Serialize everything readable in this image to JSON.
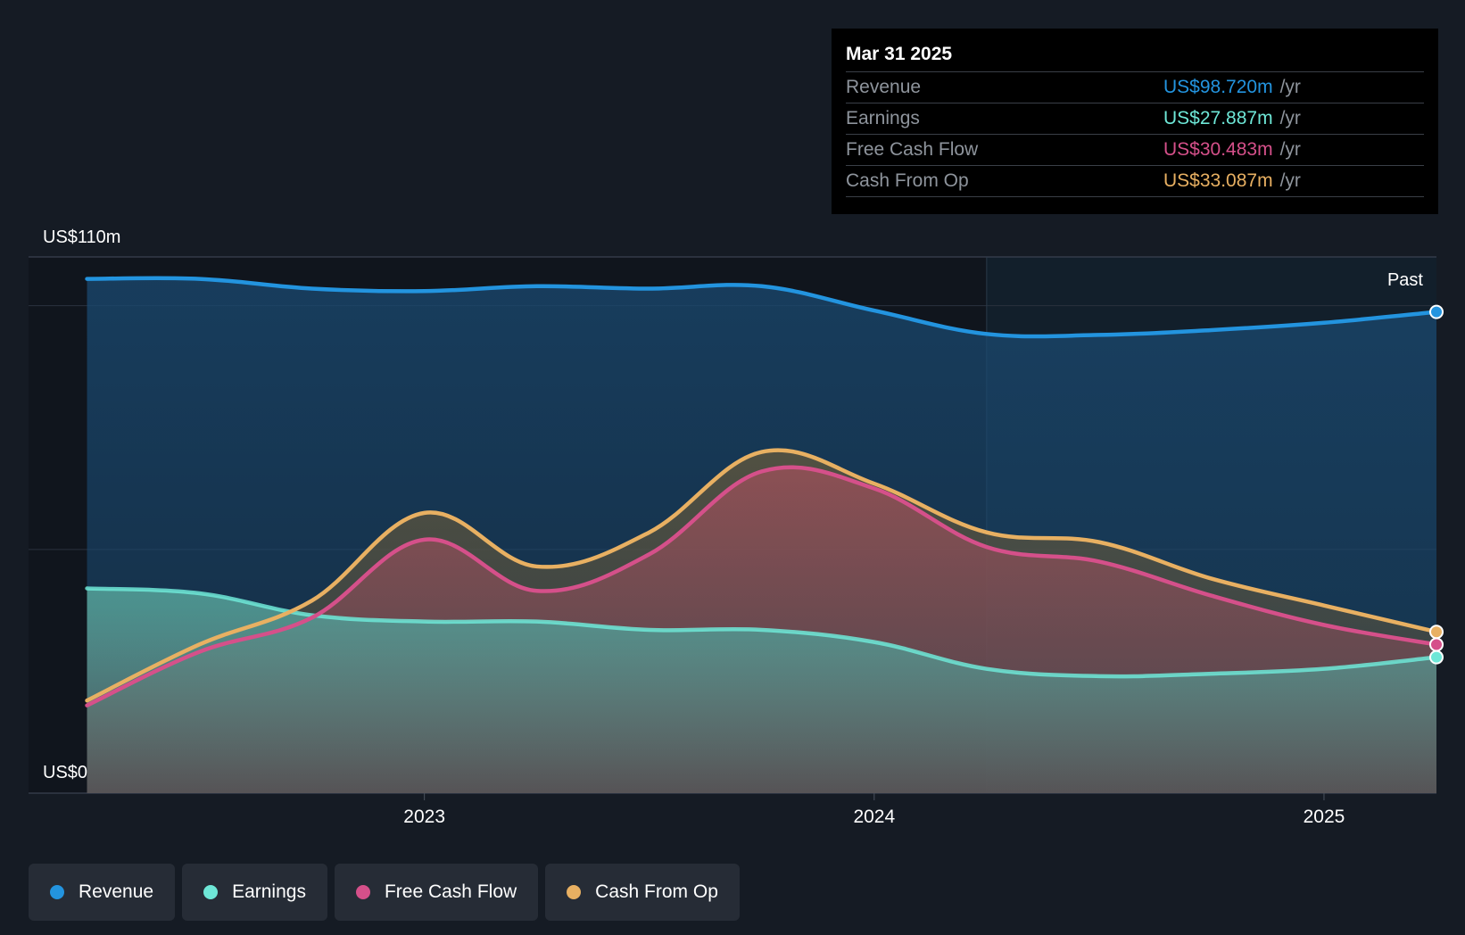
{
  "chart_data": {
    "type": "area",
    "y_max_label": "US$110m",
    "y_min_label": "US$0",
    "ylim": [
      0,
      110
    ],
    "x_ticks": [
      {
        "label": "2023",
        "x": 2023.0
      },
      {
        "label": "2024",
        "x": 2024.0
      },
      {
        "label": "2025",
        "x": 2025.0
      }
    ],
    "xlim": [
      2022.12,
      2025.25
    ],
    "past_label": "Past",
    "past_start_x": 2024.25,
    "series": [
      {
        "name": "Revenue",
        "color": "#2394df",
        "points": [
          [
            2022.25,
            105.5
          ],
          [
            2022.5,
            105.5
          ],
          [
            2022.75,
            103.5
          ],
          [
            2023.0,
            103.0
          ],
          [
            2023.25,
            104.0
          ],
          [
            2023.5,
            103.5
          ],
          [
            2023.75,
            104.0
          ],
          [
            2024.0,
            99.0
          ],
          [
            2024.25,
            94.2
          ],
          [
            2024.5,
            94.0
          ],
          [
            2024.75,
            95.0
          ],
          [
            2025.0,
            96.5
          ],
          [
            2025.25,
            98.72
          ]
        ]
      },
      {
        "name": "Earnings",
        "color": "#6ee7d7",
        "points": [
          [
            2022.25,
            42.0
          ],
          [
            2022.5,
            41.0
          ],
          [
            2022.75,
            36.5
          ],
          [
            2023.0,
            35.2
          ],
          [
            2023.25,
            35.2
          ],
          [
            2023.5,
            33.5
          ],
          [
            2023.75,
            33.5
          ],
          [
            2024.0,
            31.0
          ],
          [
            2024.25,
            25.5
          ],
          [
            2024.5,
            24.0
          ],
          [
            2024.75,
            24.5
          ],
          [
            2025.0,
            25.5
          ],
          [
            2025.25,
            27.887
          ]
        ]
      },
      {
        "name": "Free Cash Flow",
        "color": "#d5508a",
        "points": [
          [
            2022.25,
            18.0
          ],
          [
            2022.5,
            29.0
          ],
          [
            2022.75,
            36.0
          ],
          [
            2023.0,
            52.0
          ],
          [
            2023.25,
            41.5
          ],
          [
            2023.5,
            49.0
          ],
          [
            2023.75,
            66.0
          ],
          [
            2024.0,
            62.5
          ],
          [
            2024.25,
            50.5
          ],
          [
            2024.5,
            47.5
          ],
          [
            2024.75,
            40.5
          ],
          [
            2025.0,
            34.5
          ],
          [
            2025.25,
            30.483
          ]
        ]
      },
      {
        "name": "Cash From Op",
        "color": "#e8b062",
        "points": [
          [
            2022.25,
            19.0
          ],
          [
            2022.5,
            30.5
          ],
          [
            2022.75,
            39.5
          ],
          [
            2023.0,
            57.5
          ],
          [
            2023.25,
            46.5
          ],
          [
            2023.5,
            53.5
          ],
          [
            2023.75,
            70.0
          ],
          [
            2024.0,
            63.5
          ],
          [
            2024.25,
            53.5
          ],
          [
            2024.5,
            51.5
          ],
          [
            2024.75,
            44.0
          ],
          [
            2025.0,
            38.5
          ],
          [
            2025.25,
            33.087
          ]
        ]
      }
    ]
  },
  "tooltip": {
    "date": "Mar 31 2025",
    "rows": [
      {
        "label": "Revenue",
        "value": "US$98.720m",
        "unit": "/yr",
        "color": "#2394df"
      },
      {
        "label": "Earnings",
        "value": "US$27.887m",
        "unit": "/yr",
        "color": "#6ee7d7"
      },
      {
        "label": "Free Cash Flow",
        "value": "US$30.483m",
        "unit": "/yr",
        "color": "#d5508a"
      },
      {
        "label": "Cash From Op",
        "value": "US$33.087m",
        "unit": "/yr",
        "color": "#e8b062"
      }
    ]
  },
  "legend": [
    {
      "label": "Revenue",
      "color": "#2394df"
    },
    {
      "label": "Earnings",
      "color": "#6ee7d7"
    },
    {
      "label": "Free Cash Flow",
      "color": "#d5508a"
    },
    {
      "label": "Cash From Op",
      "color": "#e8b062"
    }
  ]
}
